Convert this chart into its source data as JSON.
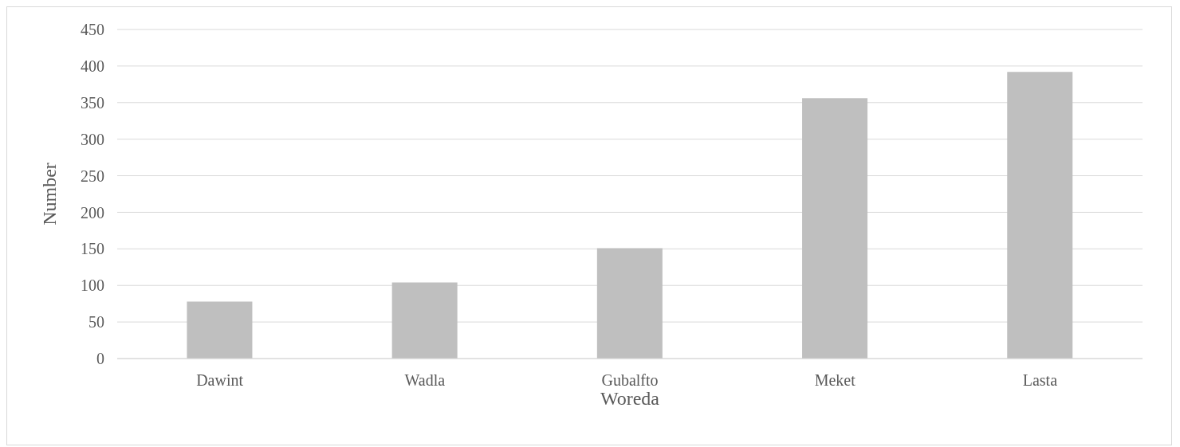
{
  "chart_data": {
    "type": "bar",
    "xlabel": "Woreda",
    "ylabel": "Number",
    "categories": [
      "Dawint",
      "Wadla",
      "Gubalfto",
      "Meket",
      "Lasta"
    ],
    "values": [
      78,
      104,
      151,
      356,
      392
    ],
    "color": "#bfbfbf",
    "ylim": [
      0,
      450
    ],
    "yticks": [
      0,
      50,
      100,
      150,
      200,
      250,
      300,
      350,
      400,
      450
    ],
    "grid": "y"
  }
}
